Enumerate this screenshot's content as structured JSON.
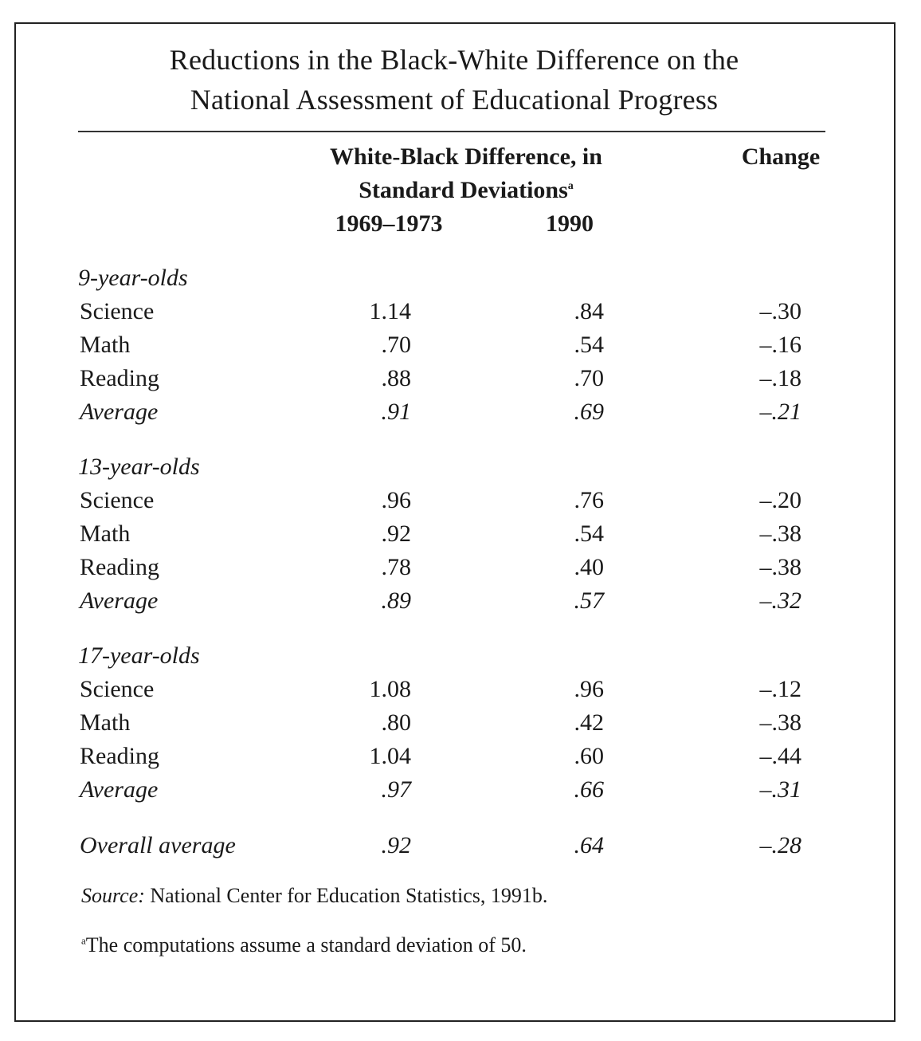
{
  "title": {
    "line1": "Reductions in the Black-White Difference on the",
    "line2": "National Assessment of Educational Progress"
  },
  "header": {
    "group_line1": "White-Black Difference, in",
    "group_line2": "Standard Deviations",
    "group_marker": "a",
    "col1": "1969–1973",
    "col2": "1990",
    "change": "Change"
  },
  "groups": [
    {
      "label": "9-year-olds",
      "rows": [
        {
          "subject": "Science",
          "v1": "1.14",
          "v2": ".84",
          "change": "–.30"
        },
        {
          "subject": "Math",
          "v1": ".70",
          "v2": ".54",
          "change": "–.16"
        },
        {
          "subject": "Reading",
          "v1": ".88",
          "v2": ".70",
          "change": "–.18"
        },
        {
          "subject": "Average",
          "v1": ".91",
          "v2": ".69",
          "change": "–.21"
        }
      ]
    },
    {
      "label": "13-year-olds",
      "rows": [
        {
          "subject": "Science",
          "v1": ".96",
          "v2": ".76",
          "change": "–.20"
        },
        {
          "subject": "Math",
          "v1": ".92",
          "v2": ".54",
          "change": "–.38"
        },
        {
          "subject": "Reading",
          "v1": ".78",
          "v2": ".40",
          "change": "–.38"
        },
        {
          "subject": "Average",
          "v1": ".89",
          "v2": ".57",
          "change": "–.32"
        }
      ]
    },
    {
      "label": "17-year-olds",
      "rows": [
        {
          "subject": "Science",
          "v1": "1.08",
          "v2": ".96",
          "change": "–.12"
        },
        {
          "subject": "Math",
          "v1": ".80",
          "v2": ".42",
          "change": "–.38"
        },
        {
          "subject": "Reading",
          "v1": "1.04",
          "v2": ".60",
          "change": "–.44"
        },
        {
          "subject": "Average",
          "v1": ".97",
          "v2": ".66",
          "change": "–.31"
        }
      ]
    }
  ],
  "overall": {
    "label": "Overall average",
    "v1": ".92",
    "v2": ".64",
    "change": "–.28"
  },
  "source": {
    "label": "Source:",
    "text": "National Center for Education Statistics, 1991b."
  },
  "footnote": {
    "marker": "a",
    "text": "The computations assume a standard deviation of 50."
  }
}
